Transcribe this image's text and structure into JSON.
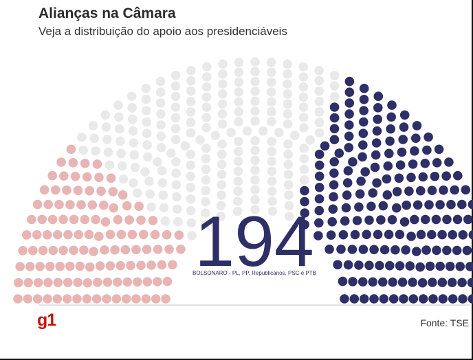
{
  "header": {
    "title": "Alianças na Câmara",
    "subtitle": "Veja a distribuição do apoio aos presidenciáveis"
  },
  "chart_data": {
    "type": "parliament",
    "total_seats": 513,
    "highlight": {
      "value": "194",
      "label": "BOLSONARO - PL, PP, Republicanos, PSC e PTB"
    },
    "blocks": [
      {
        "seats": 120,
        "color": "#e8b4b4"
      },
      {
        "seats": 199,
        "color": "#e9e9e9"
      },
      {
        "seats": 194,
        "color": "#2e2f66"
      }
    ]
  },
  "footer": {
    "logo": "g1",
    "logo_color": "#c4170c",
    "source": "Fonte: TSE"
  }
}
